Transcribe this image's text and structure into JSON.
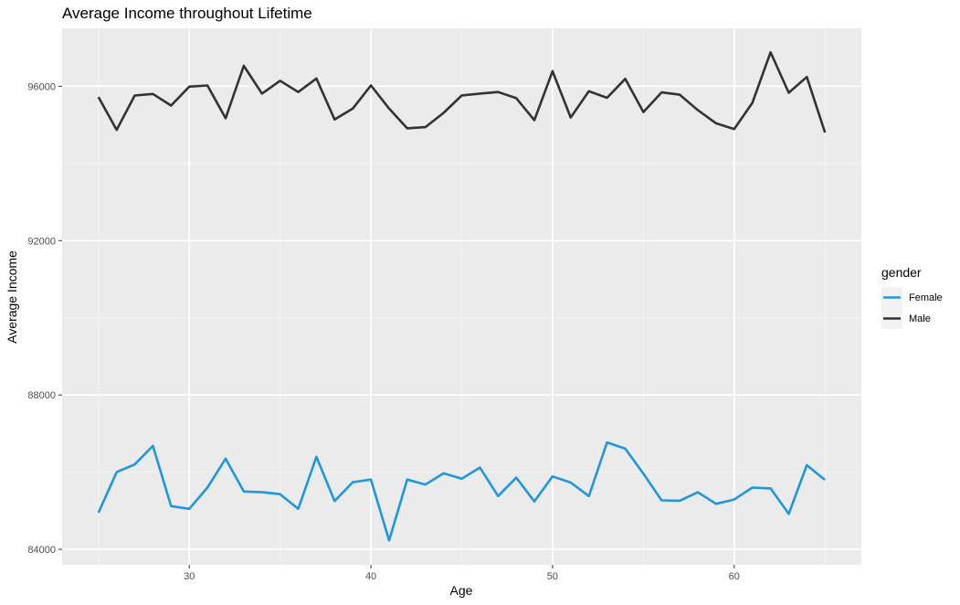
{
  "chart_data": {
    "type": "line",
    "title": "Average Income throughout Lifetime",
    "xlabel": "Age",
    "ylabel": "Average Income",
    "xlim": [
      23,
      67
    ],
    "ylim": [
      83600,
      97500
    ],
    "xticks": [
      30,
      40,
      50,
      60
    ],
    "yticks": [
      84000,
      88000,
      92000,
      96000
    ],
    "grid": true,
    "legend": {
      "title": "gender",
      "position": "right"
    },
    "x": [
      25,
      26,
      27,
      28,
      29,
      30,
      31,
      32,
      33,
      34,
      35,
      36,
      37,
      38,
      39,
      40,
      41,
      42,
      43,
      44,
      45,
      46,
      47,
      48,
      49,
      50,
      51,
      52,
      53,
      54,
      55,
      56,
      57,
      58,
      59,
      60,
      61,
      62,
      63,
      64,
      65
    ],
    "series": [
      {
        "name": "Female",
        "color": "#1f96de",
        "values": [
          84950,
          86000,
          86200,
          86680,
          85120,
          85050,
          85600,
          86350,
          85500,
          85480,
          85430,
          85050,
          86400,
          85250,
          85740,
          85810,
          84230,
          85810,
          85680,
          85970,
          85830,
          86120,
          85380,
          85860,
          85240,
          85890,
          85730,
          85380,
          86770,
          86610,
          85960,
          85270,
          85260,
          85480,
          85180,
          85290,
          85600,
          85580,
          84920,
          86180,
          85800
        ]
      },
      {
        "name": "Male",
        "color": "#333333",
        "values": [
          95720,
          94870,
          95760,
          95800,
          95500,
          95990,
          96020,
          95170,
          96530,
          95810,
          96140,
          95850,
          96200,
          95140,
          95420,
          96020,
          95420,
          94910,
          94940,
          95310,
          95760,
          95810,
          95850,
          95690,
          95120,
          96390,
          95190,
          95870,
          95700,
          96190,
          95330,
          95840,
          95780,
          95380,
          95040,
          94890,
          95570,
          96880,
          95830,
          96240,
          94800
        ]
      }
    ]
  }
}
